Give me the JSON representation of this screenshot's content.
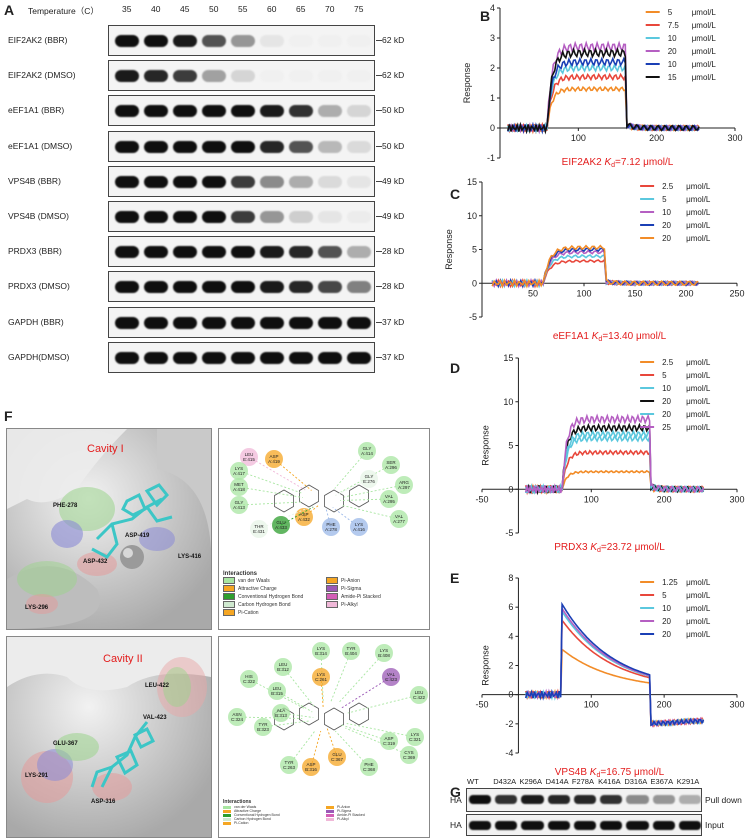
{
  "panels": {
    "A": "A",
    "B": "B",
    "C": "C",
    "D": "D",
    "E": "E",
    "F": "F",
    "G": "G"
  },
  "panelA": {
    "header_label": "Temperature（C）",
    "temperatures": [
      "35",
      "40",
      "45",
      "50",
      "55",
      "60",
      "65",
      "70",
      "75"
    ],
    "rows": [
      {
        "label": "EIF2AK2 (BBR)",
        "kd": "62 kD",
        "intensity": [
          1,
          1,
          0.95,
          0.7,
          0.4,
          0.05,
          0,
          0,
          0
        ]
      },
      {
        "label": "EIF2AK2 (DMSO)",
        "kd": "62 kD",
        "intensity": [
          0.95,
          0.9,
          0.8,
          0.35,
          0.12,
          0,
          0,
          0,
          0
        ]
      },
      {
        "label": "eEF1A1 (BBR)",
        "kd": "50 kD",
        "intensity": [
          1,
          1,
          1,
          1,
          1,
          0.95,
          0.85,
          0.3,
          0.12
        ]
      },
      {
        "label": "eEF1A1 (DMSO)",
        "kd": "50 kD",
        "intensity": [
          1,
          1,
          1,
          1,
          1,
          0.9,
          0.7,
          0.25,
          0.1
        ]
      },
      {
        "label": "VPS4B (BBR)",
        "kd": "49 kD",
        "intensity": [
          1,
          1,
          1,
          1,
          0.8,
          0.45,
          0.3,
          0.1,
          0.05
        ]
      },
      {
        "label": "VPS4B (DMSO)",
        "kd": "49 kD",
        "intensity": [
          1,
          1,
          1,
          1,
          0.8,
          0.4,
          0.15,
          0.05,
          0.02
        ]
      },
      {
        "label": "PRDX3 (BBR)",
        "kd": "28 kD",
        "intensity": [
          1,
          1,
          1,
          1,
          1,
          0.95,
          0.9,
          0.7,
          0.3
        ]
      },
      {
        "label": "PRDX3 (DMSO)",
        "kd": "28 kD",
        "intensity": [
          1,
          1,
          1,
          1,
          1,
          0.95,
          0.9,
          0.75,
          0.5
        ]
      },
      {
        "label": "GAPDH (BBR)",
        "kd": "37 kD",
        "intensity": [
          1,
          1,
          1,
          1,
          1,
          1,
          1,
          1,
          1
        ]
      },
      {
        "label": "GAPDH(DMSO)",
        "kd": "37 kD",
        "intensity": [
          1,
          1,
          1,
          1,
          1,
          1,
          1,
          1,
          1
        ]
      }
    ]
  },
  "chart_data": [
    {
      "type": "line",
      "panel": "B",
      "ylabel": "Response",
      "xlabel": "",
      "xlim": [
        0,
        300
      ],
      "ylim": [
        -1,
        4
      ],
      "xticks": [
        "100",
        "200",
        "300"
      ],
      "yticks": [
        "-1",
        "0",
        "1",
        "2",
        "3",
        "4"
      ],
      "legend_placement": "top-right",
      "legend_unit": "μmol/L",
      "association": [
        60,
        160
      ],
      "series": [
        {
          "name": "5",
          "color": "#f28c28",
          "plateau": 1.3
        },
        {
          "name": "7.5",
          "color": "#e8473b",
          "plateau": 1.7
        },
        {
          "name": "10",
          "color": "#5bc8de",
          "plateau": 2.0
        },
        {
          "name": "20",
          "color": "#b55fc2",
          "plateau": 2.7
        },
        {
          "name": "10",
          "color": "#1a3fb5",
          "plateau": 2.2
        },
        {
          "name": "15",
          "color": "#111111",
          "plateau": 2.5
        }
      ],
      "caption_prefix": "EIF2AK2 ",
      "caption_k": "K",
      "caption_sub": "d",
      "caption_suffix": "=7.12 μmol/L"
    },
    {
      "type": "line",
      "panel": "C",
      "ylabel": "Response",
      "xlabel": "",
      "xlim": [
        0,
        250
      ],
      "ylim": [
        -5,
        15
      ],
      "xticks": [
        "50",
        "100",
        "150",
        "200",
        "250"
      ],
      "yticks": [
        "-5",
        "0",
        "5",
        "10",
        "15"
      ],
      "legend_placement": "top-right",
      "legend_unit": "μmol/L",
      "association": [
        60,
        120
      ],
      "series": [
        {
          "name": "2.5",
          "color": "#e8473b",
          "plateau": 3.3
        },
        {
          "name": "5",
          "color": "#5bc8de",
          "plateau": 4.0
        },
        {
          "name": "10",
          "color": "#b55fc2",
          "plateau": 4.6
        },
        {
          "name": "20",
          "color": "#1a3fb5",
          "plateau": 5.0
        },
        {
          "name": "20",
          "color": "#f28c28",
          "plateau": 5.3
        }
      ],
      "caption_prefix": "eEF1A1 ",
      "caption_k": "K",
      "caption_sub": "d",
      "caption_suffix": "=13.40 μmol/L"
    },
    {
      "type": "line",
      "panel": "D",
      "ylabel": "Response",
      "xlabel": "",
      "xlim": [
        -50,
        300
      ],
      "ylim": [
        -5,
        15
      ],
      "xticks": [
        "-50",
        "100",
        "200",
        "300"
      ],
      "yticks": [
        "-5",
        "0",
        "5",
        "10",
        "15"
      ],
      "legend_placement": "top-right",
      "legend_unit": "μmol/L",
      "association": [
        60,
        180
      ],
      "series": [
        {
          "name": "2.5",
          "color": "#f28c28",
          "plateau": 2.0
        },
        {
          "name": "5",
          "color": "#e8473b",
          "plateau": 4.2
        },
        {
          "name": "10",
          "color": "#5bc8de",
          "plateau": 5.8
        },
        {
          "name": "20",
          "color": "#111111",
          "plateau": 7.0
        },
        {
          "name": "20",
          "color": "#5bc8de",
          "plateau": 6.3
        },
        {
          "name": "25",
          "color": "#b55fc2",
          "plateau": 8.0
        }
      ],
      "caption_prefix": "PRDX3 ",
      "caption_k": "K",
      "caption_sub": "d",
      "caption_suffix": "=23.72 μmol/L"
    },
    {
      "type": "line",
      "panel": "E",
      "ylabel": "Response",
      "xlabel": "",
      "xlim": [
        -50,
        300
      ],
      "ylim": [
        -4,
        8
      ],
      "xticks": [
        "-50",
        "100",
        "200",
        "300"
      ],
      "yticks": [
        "-4",
        "-2",
        "0",
        "2",
        "4",
        "6",
        "8"
      ],
      "legend_placement": "top-right",
      "legend_unit": "μmol/L",
      "association": [
        60,
        180
      ],
      "series": [
        {
          "name": "1.25",
          "color": "#f28c28",
          "plateau": 2.8
        },
        {
          "name": "5",
          "color": "#e8473b",
          "plateau": 4.8
        },
        {
          "name": "10",
          "color": "#5bc8de",
          "plateau": 5.4
        },
        {
          "name": "20",
          "color": "#b55fc2",
          "plateau": 5.6
        },
        {
          "name": "20",
          "color": "#1a3fb5",
          "plateau": 5.9
        }
      ],
      "caption_prefix": "VPS4B ",
      "caption_k": "K",
      "caption_sub": "d",
      "caption_suffix": "=16.75 μmol/L"
    }
  ],
  "panelF": {
    "cavity1_label": "Cavity I",
    "cavity2_label": "Cavity II",
    "cavity1_residues": [
      "PHE-278",
      "ASP-419",
      "ASP-432",
      "LYS-416",
      "LYS-296"
    ],
    "cavity2_residues": [
      "LEU-422",
      "VAL-423",
      "GLU-367",
      "LYS-291",
      "ASP-316"
    ],
    "legend1_title": "Interactions",
    "legend1_items": [
      {
        "label": "van der Waals",
        "color": "#a8e6a1"
      },
      {
        "label": "Pi-Anion",
        "color": "#f5a623"
      },
      {
        "label": "Attractive Charge",
        "color": "#f5a623"
      },
      {
        "label": "Pi-Sigma",
        "color": "#9b59b6"
      },
      {
        "label": "Conventional Hydrogen Bond",
        "color": "#2e9e2e"
      },
      {
        "label": "Amide-Pi Stacked",
        "color": "#d35fb7"
      },
      {
        "label": "Carbon Hydrogen Bond",
        "color": "#cfe9cf"
      },
      {
        "label": "Pi-Alkyl",
        "color": "#f0b8d8"
      },
      {
        "label": "Pi-Cation",
        "color": "#f5a623"
      }
    ],
    "diagram1_nodes": [
      "ASP A:419",
      "ASP A:432",
      "LYS A:416",
      "LEU E:415",
      "GLY A:414",
      "MET A:418",
      "LYS A:417",
      "GLY A:413",
      "THR E:431",
      "GLU A:433",
      "SER A:296",
      "ARG A:297",
      "VAL A:295",
      "GLY E:276",
      "PHE A:278",
      "VAL A:277"
    ],
    "diagram2_nodes": [
      "LYS B:314",
      "TYR B:404",
      "LYS B:408",
      "LEU B:312",
      "HIS C:322",
      "LYS C:261",
      "VAL C:423",
      "LEU C:422",
      "LEU B:315",
      "ALA B:313",
      "TYR B:323",
      "ASN C:324",
      "ASP B:316",
      "GLU C:367",
      "ASP C:319",
      "LYS C:321",
      "PHE C:368",
      "TYR C:263",
      "CYS C:369"
    ],
    "legend2_title": "Interactions"
  },
  "panelG": {
    "lanes": [
      "WT",
      "D432A",
      "K296A",
      "D414A",
      "F278A",
      "K416A",
      "D316A",
      "E367A",
      "K291A"
    ],
    "row_label": "HA",
    "pulldown_label": "Pull down",
    "input_label": "Input",
    "pulldown_intensity": [
      1,
      0.85,
      0.95,
      0.9,
      0.9,
      0.85,
      0.45,
      0.4,
      0.3
    ],
    "input_intensity": [
      1,
      1,
      1,
      1,
      1,
      1,
      1,
      1,
      1
    ]
  }
}
